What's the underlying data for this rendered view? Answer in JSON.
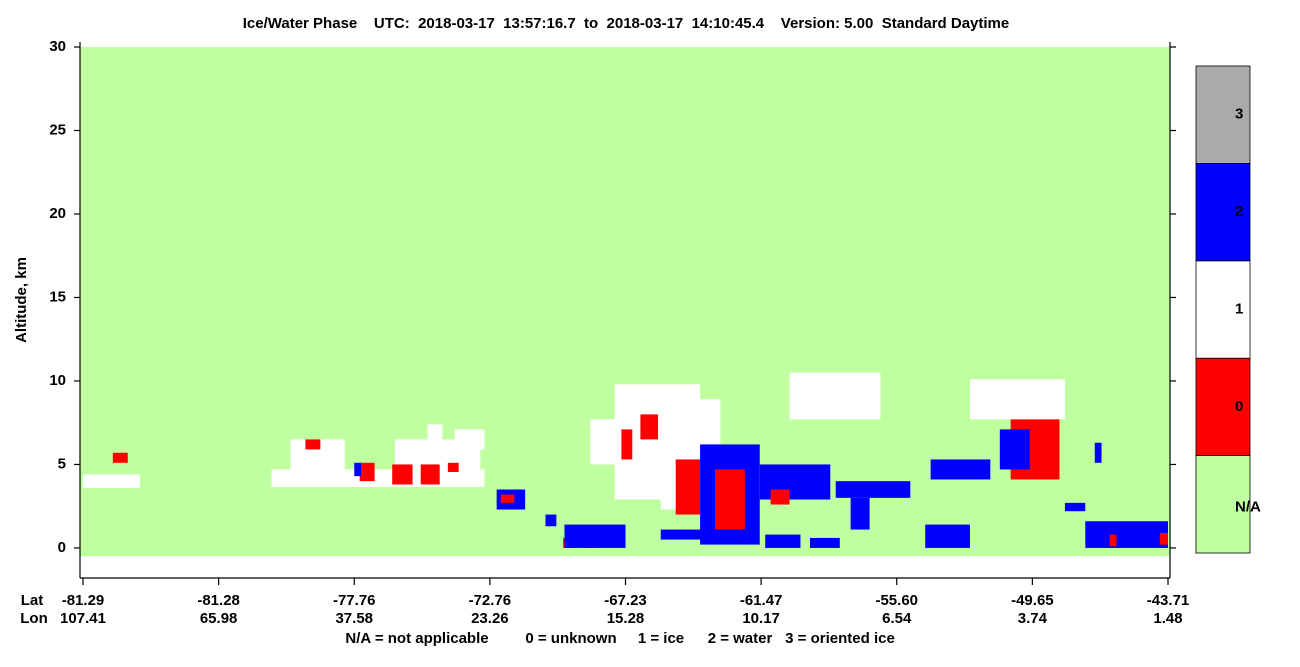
{
  "chart_data": {
    "type": "phase_curtain",
    "title": "Ice/Water Phase    UTC:  2018-03-17  13:57:16.7  to  2018-03-17  14:10:45.4    Version: 5.00  Standard Daytime",
    "ylabel": "Altitude, km",
    "ylim": [
      -1.8,
      30.3
    ],
    "yticks": [
      0,
      5,
      10,
      15,
      20,
      25,
      30
    ],
    "xlim": [
      0,
      8
    ],
    "x_row_labels": [
      "Lat",
      "Lon"
    ],
    "xticks": [
      {
        "value": 0,
        "lat": "-81.29",
        "lon": "107.41"
      },
      {
        "value": 1,
        "lat": "-81.28",
        "lon": "65.98"
      },
      {
        "value": 2,
        "lat": "-77.76",
        "lon": "37.58"
      },
      {
        "value": 3,
        "lat": "-72.76",
        "lon": "23.26"
      },
      {
        "value": 4,
        "lat": "-67.23",
        "lon": "15.28"
      },
      {
        "value": 5,
        "lat": "-61.47",
        "lon": "10.17"
      },
      {
        "value": 6,
        "lat": "-55.60",
        "lon": "6.54"
      },
      {
        "value": 7,
        "lat": "-49.65",
        "lon": "3.74"
      },
      {
        "value": 8,
        "lat": "-43.71",
        "lon": "1.48"
      }
    ],
    "na_alt": [
      -0.5,
      30
    ],
    "colorbar": [
      {
        "label": "N/A",
        "color": "#c0ffa0"
      },
      {
        "label": "0",
        "color": "#ff0000"
      },
      {
        "label": "1",
        "color": "#ffffff"
      },
      {
        "label": "2",
        "color": "#0000ff"
      },
      {
        "label": "3",
        "color": "#aaaaaa"
      }
    ],
    "footnote": [
      "N/A = not applicable",
      "0 = unknown",
      "1 = ice",
      "2 = water",
      "3 = oriented ice"
    ],
    "features": [
      {
        "phase": "1",
        "x": [
          0,
          0.42
        ],
        "alt": [
          3.6,
          4.4
        ]
      },
      {
        "phase": "1",
        "x": [
          1.39,
          2.96
        ],
        "alt": [
          3.65,
          4.7
        ]
      },
      {
        "phase": "1",
        "x": [
          1.53,
          1.93
        ],
        "alt": [
          4.7,
          6.5
        ]
      },
      {
        "phase": "1",
        "x": [
          2.3,
          2.93
        ],
        "alt": [
          4.7,
          6.5
        ]
      },
      {
        "phase": "1",
        "x": [
          2.54,
          2.65
        ],
        "alt": [
          6.5,
          7.4
        ]
      },
      {
        "phase": "1",
        "x": [
          2.74,
          2.96
        ],
        "alt": [
          5.9,
          7.1
        ]
      },
      {
        "phase": "1",
        "x": [
          3.92,
          4.55
        ],
        "alt": [
          2.9,
          9.8
        ]
      },
      {
        "phase": "1",
        "x": [
          3.74,
          3.92
        ],
        "alt": [
          5.0,
          7.7
        ]
      },
      {
        "phase": "1",
        "x": [
          4.26,
          4.7
        ],
        "alt": [
          2.3,
          8.9
        ]
      },
      {
        "phase": "1",
        "x": [
          5.21,
          5.88
        ],
        "alt": [
          7.7,
          10.5
        ]
      },
      {
        "phase": "1",
        "x": [
          6.54,
          7.24
        ],
        "alt": [
          7.7,
          10.1
        ]
      },
      {
        "phase": "0",
        "x": [
          0.22,
          0.33
        ],
        "alt": [
          5.1,
          5.7
        ]
      },
      {
        "phase": "0",
        "x": [
          1.64,
          1.75
        ],
        "alt": [
          5.9,
          6.5
        ]
      },
      {
        "phase": "0",
        "x": [
          2.04,
          2.15
        ],
        "alt": [
          4.0,
          5.1
        ]
      },
      {
        "phase": "0",
        "x": [
          2.28,
          2.43
        ],
        "alt": [
          3.8,
          5.0
        ]
      },
      {
        "phase": "0",
        "x": [
          2.49,
          2.63
        ],
        "alt": [
          3.8,
          5.0
        ]
      },
      {
        "phase": "0",
        "x": [
          2.69,
          2.77
        ],
        "alt": [
          4.55,
          5.1
        ]
      },
      {
        "phase": "0",
        "x": [
          3.54,
          3.63
        ],
        "alt": [
          0,
          0.6
        ]
      },
      {
        "phase": "0",
        "x": [
          3.7,
          3.79
        ],
        "alt": [
          0,
          0.5
        ]
      },
      {
        "phase": "0",
        "x": [
          4.11,
          4.24
        ],
        "alt": [
          6.5,
          8.0
        ]
      },
      {
        "phase": "0",
        "x": [
          3.97,
          4.05
        ],
        "alt": [
          5.3,
          7.1
        ]
      },
      {
        "phase": "0",
        "x": [
          4.37,
          4.55
        ],
        "alt": [
          2.0,
          5.3
        ]
      },
      {
        "phase": "2",
        "x": [
          2.0,
          2.05
        ],
        "alt": [
          4.3,
          5.1
        ]
      },
      {
        "phase": "2",
        "x": [
          3.05,
          3.26
        ],
        "alt": [
          2.3,
          3.5
        ]
      },
      {
        "phase": "0",
        "x": [
          3.08,
          3.18
        ],
        "alt": [
          2.7,
          3.2
        ]
      },
      {
        "phase": "2",
        "x": [
          3.41,
          3.49
        ],
        "alt": [
          1.3,
          2.0
        ]
      },
      {
        "phase": "2",
        "x": [
          3.55,
          4.0
        ],
        "alt": [
          0,
          1.4
        ]
      },
      {
        "phase": "2",
        "x": [
          4.55,
          4.99
        ],
        "alt": [
          0.2,
          6.2
        ]
      },
      {
        "phase": "0",
        "x": [
          4.66,
          4.88
        ],
        "alt": [
          1.1,
          4.7
        ]
      },
      {
        "phase": "2",
        "x": [
          4.99,
          5.51
        ],
        "alt": [
          2.9,
          5.0
        ]
      },
      {
        "phase": "0",
        "x": [
          5.07,
          5.21
        ],
        "alt": [
          2.6,
          3.5
        ]
      },
      {
        "phase": "2",
        "x": [
          4.26,
          4.7
        ],
        "alt": [
          0.5,
          1.1
        ]
      },
      {
        "phase": "2",
        "x": [
          5.03,
          5.29
        ],
        "alt": [
          0,
          0.8
        ]
      },
      {
        "phase": "2",
        "x": [
          5.36,
          5.58
        ],
        "alt": [
          0,
          0.6
        ]
      },
      {
        "phase": "2",
        "x": [
          5.55,
          6.1
        ],
        "alt": [
          3.0,
          4.0
        ]
      },
      {
        "phase": "2",
        "x": [
          5.66,
          5.8
        ],
        "alt": [
          1.1,
          3.0
        ]
      },
      {
        "phase": "2",
        "x": [
          6.21,
          6.54
        ],
        "alt": [
          0,
          1.4
        ]
      },
      {
        "phase": "0",
        "x": [
          6.84,
          7.2
        ],
        "alt": [
          4.1,
          7.7
        ]
      },
      {
        "phase": "2",
        "x": [
          6.76,
          6.98
        ],
        "alt": [
          4.7,
          7.1
        ]
      },
      {
        "phase": "2",
        "x": [
          6.25,
          6.69
        ],
        "alt": [
          4.1,
          5.3
        ]
      },
      {
        "phase": "2",
        "x": [
          7.24,
          7.39
        ],
        "alt": [
          2.2,
          2.7
        ]
      },
      {
        "phase": "2",
        "x": [
          7.46,
          7.51
        ],
        "alt": [
          5.1,
          6.3
        ]
      },
      {
        "phase": "2",
        "x": [
          7.39,
          8.0
        ],
        "alt": [
          0,
          1.6
        ]
      },
      {
        "phase": "0",
        "x": [
          7.57,
          7.62
        ],
        "alt": [
          0.1,
          0.8
        ]
      },
      {
        "phase": "0",
        "x": [
          7.94,
          8.0
        ],
        "alt": [
          0.2,
          0.9
        ]
      }
    ]
  }
}
